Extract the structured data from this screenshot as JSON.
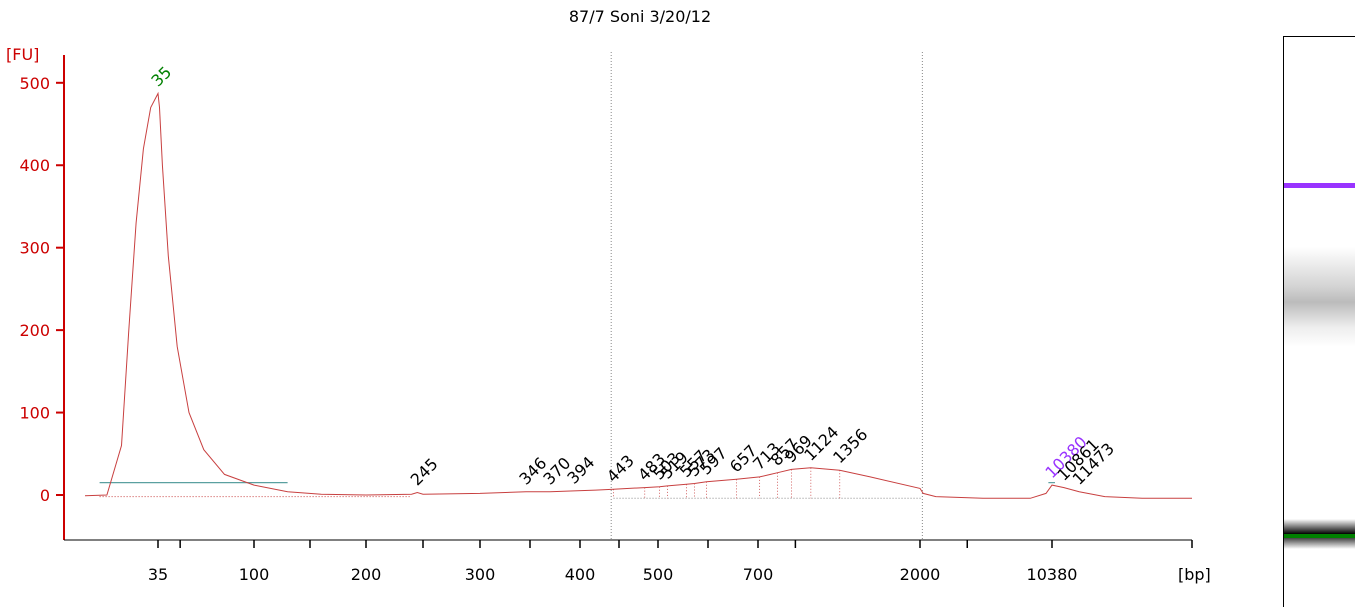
{
  "chart_data": {
    "type": "line",
    "title": "87/7 Soni 3/20/12",
    "yunit": "[FU]",
    "xunit": "[bp]",
    "ylim": [
      -55,
      520
    ],
    "y_ticks": [
      "0",
      "100",
      "200",
      "300",
      "400",
      "500"
    ],
    "x_tick_labels": [
      "35",
      "100",
      "200",
      "300",
      "400",
      "500",
      "700",
      "2000",
      "10380"
    ],
    "peak_labels": [
      {
        "label": "35",
        "x": 35,
        "y": 487,
        "color": "#008000"
      },
      {
        "label": "245",
        "x": 245,
        "y": 3
      },
      {
        "label": "346",
        "x": 346,
        "y": 4
      },
      {
        "label": "370",
        "x": 370,
        "y": 4
      },
      {
        "label": "394",
        "x": 394,
        "y": 5
      },
      {
        "label": "443",
        "x": 443,
        "y": 7
      },
      {
        "label": "483",
        "x": 483,
        "y": 9
      },
      {
        "label": "503",
        "x": 503,
        "y": 10
      },
      {
        "label": "519",
        "x": 519,
        "y": 11
      },
      {
        "label": "557",
        "x": 557,
        "y": 13
      },
      {
        "label": "573",
        "x": 573,
        "y": 14
      },
      {
        "label": "597",
        "x": 597,
        "y": 16
      },
      {
        "label": "657",
        "x": 657,
        "y": 19
      },
      {
        "label": "713",
        "x": 713,
        "y": 22
      },
      {
        "label": "857",
        "x": 857,
        "y": 27
      },
      {
        "label": "969",
        "x": 969,
        "y": 31
      },
      {
        "label": "1124",
        "x": 1124,
        "y": 33
      },
      {
        "label": "1356",
        "x": 1356,
        "y": 30
      },
      {
        "label": "10380",
        "x": 10380,
        "y": 12,
        "color": "#9933ff"
      },
      {
        "label": "10861",
        "x": 10861,
        "y": 9
      },
      {
        "label": "11473",
        "x": 11473,
        "y": 4
      }
    ],
    "series": [
      {
        "color": "#c84040",
        "points": [
          [
            25,
            -1
          ],
          [
            28,
            0
          ],
          [
            30,
            60
          ],
          [
            31,
            200
          ],
          [
            32,
            330
          ],
          [
            33,
            420
          ],
          [
            34,
            470
          ],
          [
            35,
            487
          ],
          [
            36,
            470
          ],
          [
            38,
            400
          ],
          [
            42,
            290
          ],
          [
            48,
            180
          ],
          [
            56,
            100
          ],
          [
            66,
            55
          ],
          [
            80,
            25
          ],
          [
            100,
            12
          ],
          [
            130,
            4
          ],
          [
            160,
            1
          ],
          [
            200,
            0
          ],
          [
            240,
            1
          ],
          [
            245,
            3
          ],
          [
            250,
            1
          ],
          [
            300,
            2
          ],
          [
            346,
            4
          ],
          [
            370,
            4
          ],
          [
            394,
            5
          ],
          [
            420,
            6
          ],
          [
            443,
            7
          ],
          [
            483,
            9
          ],
          [
            503,
            10
          ],
          [
            519,
            11
          ],
          [
            557,
            13
          ],
          [
            573,
            14
          ],
          [
            597,
            16
          ],
          [
            657,
            19
          ],
          [
            713,
            22
          ],
          [
            800,
            25
          ],
          [
            857,
            27
          ],
          [
            969,
            31
          ],
          [
            1124,
            33
          ],
          [
            1356,
            30
          ],
          [
            1600,
            22
          ],
          [
            2000,
            8
          ],
          [
            2200,
            2
          ],
          [
            3000,
            -2
          ],
          [
            6000,
            -4
          ],
          [
            9000,
            -4
          ],
          [
            10000,
            2
          ],
          [
            10380,
            12
          ],
          [
            10861,
            9
          ],
          [
            11473,
            4
          ],
          [
            12500,
            -2
          ],
          [
            14000,
            -4
          ],
          [
            16000,
            -4
          ]
        ]
      }
    ],
    "baseline_label": "",
    "markers": [
      "lower",
      "upper"
    ],
    "grid": false
  },
  "gel": {
    "upper_marker_color": "#9933ff",
    "lower_marker_color": "#008000"
  }
}
